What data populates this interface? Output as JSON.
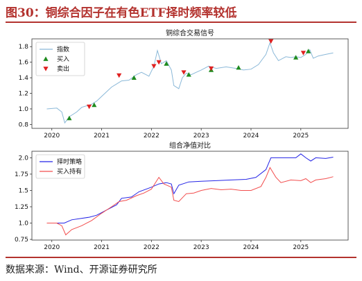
{
  "figure_title": "图30：铜综合因子在有色ETF择时频率较低",
  "source": "数据来源：Wind、开源证券研究所",
  "chart_data": [
    {
      "type": "line",
      "title": "铜综合交易信号",
      "x_ticks": [
        "2020",
        "2021",
        "2022",
        "2023",
        "2024",
        "2025"
      ],
      "ylim": [
        0.75,
        1.9
      ],
      "y_ticks": [
        0.8,
        1.0,
        1.2,
        1.4,
        1.6,
        1.8
      ],
      "grid": false,
      "legend_position": "top-left",
      "series": [
        {
          "name": "指数",
          "color": "#8ab8d8",
          "points": [
            [
              2019.9,
              1.0
            ],
            [
              2020.1,
              1.01
            ],
            [
              2020.2,
              0.96
            ],
            [
              2020.26,
              0.82
            ],
            [
              2020.35,
              0.9
            ],
            [
              2020.5,
              0.96
            ],
            [
              2020.6,
              1.02
            ],
            [
              2020.7,
              1.04
            ],
            [
              2020.8,
              1.06
            ],
            [
              2020.9,
              1.1
            ],
            [
              2021.0,
              1.16
            ],
            [
              2021.1,
              1.22
            ],
            [
              2021.2,
              1.28
            ],
            [
              2021.3,
              1.32
            ],
            [
              2021.4,
              1.36
            ],
            [
              2021.55,
              1.37
            ],
            [
              2021.7,
              1.44
            ],
            [
              2021.8,
              1.47
            ],
            [
              2021.95,
              1.42
            ],
            [
              2022.05,
              1.55
            ],
            [
              2022.12,
              1.75
            ],
            [
              2022.2,
              1.58
            ],
            [
              2022.3,
              1.62
            ],
            [
              2022.4,
              1.5
            ],
            [
              2022.45,
              1.3
            ],
            [
              2022.55,
              1.26
            ],
            [
              2022.62,
              1.4
            ],
            [
              2022.7,
              1.46
            ],
            [
              2022.8,
              1.44
            ],
            [
              2022.9,
              1.47
            ],
            [
              2023.0,
              1.5
            ],
            [
              2023.15,
              1.55
            ],
            [
              2023.3,
              1.52
            ],
            [
              2023.5,
              1.54
            ],
            [
              2023.7,
              1.52
            ],
            [
              2023.85,
              1.5
            ],
            [
              2024.0,
              1.51
            ],
            [
              2024.15,
              1.57
            ],
            [
              2024.3,
              1.7
            ],
            [
              2024.38,
              1.85
            ],
            [
              2024.45,
              1.72
            ],
            [
              2024.55,
              1.62
            ],
            [
              2024.7,
              1.67
            ],
            [
              2024.8,
              1.66
            ],
            [
              2024.9,
              1.67
            ],
            [
              2025.0,
              1.66
            ],
            [
              2025.1,
              1.7
            ],
            [
              2025.18,
              1.76
            ],
            [
              2025.25,
              1.65
            ],
            [
              2025.35,
              1.68
            ],
            [
              2025.5,
              1.7
            ],
            [
              2025.65,
              1.72
            ]
          ]
        }
      ],
      "markers": [
        {
          "name": "买入",
          "color": "#1e8b1e",
          "symbol": "triangle-up",
          "points": [
            [
              2020.35,
              0.88
            ],
            [
              2020.85,
              1.05
            ],
            [
              2021.65,
              1.4
            ],
            [
              2022.3,
              1.58
            ],
            [
              2022.75,
              1.44
            ],
            [
              2023.2,
              1.5
            ],
            [
              2023.75,
              1.53
            ],
            [
              2024.9,
              1.66
            ],
            [
              2025.15,
              1.74
            ]
          ]
        },
        {
          "name": "卖出",
          "color": "#e02020",
          "symbol": "triangle-down",
          "points": [
            [
              2020.75,
              1.03
            ],
            [
              2021.35,
              1.43
            ],
            [
              2022.05,
              1.55
            ],
            [
              2022.15,
              1.6
            ],
            [
              2022.65,
              1.47
            ],
            [
              2023.2,
              1.52
            ],
            [
              2024.4,
              1.87
            ],
            [
              2025.05,
              1.72
            ]
          ]
        }
      ]
    },
    {
      "type": "line",
      "title": "组合净值对比",
      "x_ticks": [
        "2020",
        "2021",
        "2022",
        "2023",
        "2024",
        "2025"
      ],
      "ylim": [
        0.74,
        2.1
      ],
      "y_ticks": [
        0.75,
        1.0,
        1.25,
        1.5,
        1.75,
        2.0
      ],
      "grid": false,
      "legend_position": "top-left",
      "series": [
        {
          "name": "择时策略",
          "color": "#2323e6",
          "points": [
            [
              2019.9,
              1.0
            ],
            [
              2020.25,
              1.0
            ],
            [
              2020.4,
              1.05
            ],
            [
              2020.75,
              1.09
            ],
            [
              2020.9,
              1.12
            ],
            [
              2021.1,
              1.2
            ],
            [
              2021.3,
              1.28
            ],
            [
              2021.4,
              1.38
            ],
            [
              2021.6,
              1.4
            ],
            [
              2021.75,
              1.48
            ],
            [
              2022.0,
              1.55
            ],
            [
              2022.15,
              1.6
            ],
            [
              2022.3,
              1.62
            ],
            [
              2022.4,
              1.6
            ],
            [
              2022.45,
              1.45
            ],
            [
              2022.55,
              1.58
            ],
            [
              2022.75,
              1.63
            ],
            [
              2023.0,
              1.64
            ],
            [
              2023.3,
              1.65
            ],
            [
              2023.6,
              1.66
            ],
            [
              2023.9,
              1.67
            ],
            [
              2024.1,
              1.7
            ],
            [
              2024.3,
              1.82
            ],
            [
              2024.4,
              2.0
            ],
            [
              2024.5,
              2.0
            ],
            [
              2024.9,
              2.0
            ],
            [
              2025.0,
              2.06
            ],
            [
              2025.1,
              2.0
            ],
            [
              2025.2,
              1.95
            ],
            [
              2025.3,
              2.0
            ],
            [
              2025.5,
              1.99
            ],
            [
              2025.65,
              2.01
            ]
          ]
        },
        {
          "name": "买入持有",
          "color": "#f24d4d",
          "points": [
            [
              2019.9,
              1.0
            ],
            [
              2020.1,
              1.0
            ],
            [
              2020.2,
              0.96
            ],
            [
              2020.28,
              0.82
            ],
            [
              2020.4,
              0.9
            ],
            [
              2020.6,
              0.96
            ],
            [
              2020.8,
              1.04
            ],
            [
              2021.0,
              1.15
            ],
            [
              2021.2,
              1.25
            ],
            [
              2021.35,
              1.33
            ],
            [
              2021.5,
              1.35
            ],
            [
              2021.7,
              1.42
            ],
            [
              2021.85,
              1.46
            ],
            [
              2022.0,
              1.52
            ],
            [
              2022.15,
              1.7
            ],
            [
              2022.25,
              1.6
            ],
            [
              2022.4,
              1.55
            ],
            [
              2022.45,
              1.35
            ],
            [
              2022.55,
              1.33
            ],
            [
              2022.7,
              1.45
            ],
            [
              2022.85,
              1.46
            ],
            [
              2023.0,
              1.5
            ],
            [
              2023.2,
              1.53
            ],
            [
              2023.4,
              1.51
            ],
            [
              2023.6,
              1.52
            ],
            [
              2023.8,
              1.5
            ],
            [
              2024.0,
              1.5
            ],
            [
              2024.2,
              1.56
            ],
            [
              2024.3,
              1.7
            ],
            [
              2024.38,
              1.85
            ],
            [
              2024.5,
              1.7
            ],
            [
              2024.6,
              1.62
            ],
            [
              2024.8,
              1.66
            ],
            [
              2025.0,
              1.65
            ],
            [
              2025.1,
              1.68
            ],
            [
              2025.2,
              1.62
            ],
            [
              2025.3,
              1.66
            ],
            [
              2025.5,
              1.68
            ],
            [
              2025.65,
              1.71
            ]
          ]
        }
      ]
    }
  ]
}
